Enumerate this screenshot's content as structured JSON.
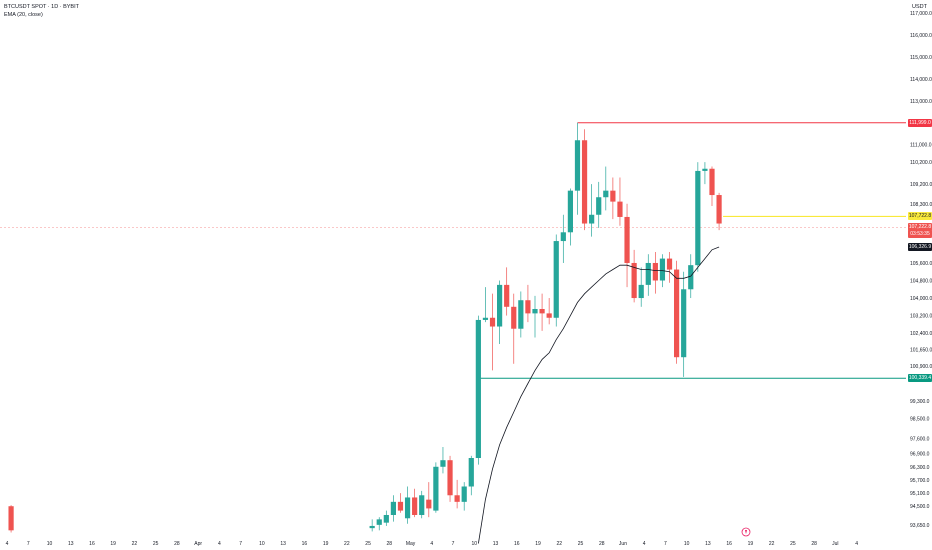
{
  "header": {
    "symbol_line": "BTCUSDT SPOT · 1D · BYBIT",
    "indicator_line": "EMA (20, close)",
    "currency": "USDT"
  },
  "colors": {
    "up": "#26a69a",
    "down": "#ef5350",
    "ema": "#131722",
    "resistance": "#f23645",
    "support": "#089981",
    "current_price_line": "#f9e93b",
    "crosshair_dash": "#f7a8a8"
  },
  "price_labels": {
    "resistance": "111,999.0",
    "current": "107,722.8",
    "last": "107,222.8",
    "countdown": "03:53:35",
    "ema_value": "106,326.9",
    "support": "100,339.4"
  },
  "logo": {
    "icon": "tradingview-logo-icon"
  },
  "chart_data": {
    "type": "candlestick",
    "title": "BTCUSDT SPOT · 1D · BYBIT",
    "xlabel": "",
    "ylabel": "USDT",
    "ylim": [
      93050,
      117600
    ],
    "y_ticks": [
      {
        "v": 93650,
        "label": "93,650.0"
      },
      {
        "v": 94500,
        "label": "94,500.0"
      },
      {
        "v": 95100,
        "label": "95,100.0"
      },
      {
        "v": 95700,
        "label": "95,700.0"
      },
      {
        "v": 96300,
        "label": "96,300.0"
      },
      {
        "v": 96900,
        "label": "96,900.0"
      },
      {
        "v": 97600,
        "label": "97,600.0"
      },
      {
        "v": 98500,
        "label": "98,500.0"
      },
      {
        "v": 99300,
        "label": "99,300.0"
      },
      {
        "v": 100900,
        "label": "100,900.0"
      },
      {
        "v": 101650,
        "label": "101,650.0"
      },
      {
        "v": 102400,
        "label": "102,400.0"
      },
      {
        "v": 103200,
        "label": "103,200.0"
      },
      {
        "v": 104000,
        "label": "104,000.0"
      },
      {
        "v": 104800,
        "label": "104,800.0"
      },
      {
        "v": 105600,
        "label": "105,600.0"
      },
      {
        "v": 108300,
        "label": "108,300.0"
      },
      {
        "v": 109200,
        "label": "109,200.0"
      },
      {
        "v": 110200,
        "label": "110,200.0"
      },
      {
        "v": 111000,
        "label": "111,000.0"
      },
      {
        "v": 113000,
        "label": "113,000.0"
      },
      {
        "v": 114000,
        "label": "114,000.0"
      },
      {
        "v": 115000,
        "label": "115,000.0"
      },
      {
        "v": 116000,
        "label": "116,000.0"
      },
      {
        "v": 117000,
        "label": "117,000.0"
      }
    ],
    "x_ticks": [
      "4",
      "7",
      "10",
      "13",
      "16",
      "19",
      "22",
      "25",
      "28",
      "Apr",
      "4",
      "7",
      "10",
      "13",
      "16",
      "19",
      "22",
      "25",
      "28",
      "May",
      "4",
      "7",
      "10",
      "13",
      "16",
      "19",
      "22",
      "25",
      "28",
      "Jun",
      "4",
      "7",
      "10",
      "13",
      "16",
      "19",
      "22",
      "25",
      "28",
      "Jul",
      "4"
    ],
    "first_day_index": -1,
    "candles": [
      {
        "d": 0,
        "o": 94500,
        "h": 94550,
        "l": 93300,
        "c": 93400
      },
      {
        "d": 51,
        "o": 93500,
        "h": 93900,
        "l": 93350,
        "c": 93600
      },
      {
        "d": 52,
        "o": 93650,
        "h": 94000,
        "l": 93400,
        "c": 93900
      },
      {
        "d": 53,
        "o": 93750,
        "h": 94300,
        "l": 93600,
        "c": 94100
      },
      {
        "d": 54,
        "o": 94100,
        "h": 95000,
        "l": 93800,
        "c": 94700
      },
      {
        "d": 55,
        "o": 94700,
        "h": 95100,
        "l": 94200,
        "c": 94300
      },
      {
        "d": 56,
        "o": 93950,
        "h": 95400,
        "l": 93700,
        "c": 94900
      },
      {
        "d": 57,
        "o": 94900,
        "h": 95300,
        "l": 94000,
        "c": 94100
      },
      {
        "d": 58,
        "o": 94100,
        "h": 95200,
        "l": 93950,
        "c": 95000
      },
      {
        "d": 59,
        "o": 94800,
        "h": 95600,
        "l": 94000,
        "c": 94400
      },
      {
        "d": 60,
        "o": 94300,
        "h": 96500,
        "l": 94200,
        "c": 96300
      },
      {
        "d": 61,
        "o": 96300,
        "h": 97200,
        "l": 96000,
        "c": 96600
      },
      {
        "d": 62,
        "o": 96600,
        "h": 96800,
        "l": 94700,
        "c": 95000
      },
      {
        "d": 63,
        "o": 95000,
        "h": 95700,
        "l": 94400,
        "c": 94700
      },
      {
        "d": 64,
        "o": 94700,
        "h": 95600,
        "l": 94300,
        "c": 95400
      },
      {
        "d": 65,
        "o": 95400,
        "h": 96800,
        "l": 95000,
        "c": 96700
      },
      {
        "d": 66,
        "o": 96700,
        "h": 103200,
        "l": 96400,
        "c": 103000
      },
      {
        "d": 67,
        "o": 103000,
        "h": 104500,
        "l": 102900,
        "c": 103100
      },
      {
        "d": 68,
        "o": 103100,
        "h": 104200,
        "l": 100700,
        "c": 102700
      },
      {
        "d": 69,
        "o": 102700,
        "h": 104800,
        "l": 101900,
        "c": 104600
      },
      {
        "d": 70,
        "o": 104600,
        "h": 105400,
        "l": 103200,
        "c": 103600
      },
      {
        "d": 71,
        "o": 103600,
        "h": 104200,
        "l": 101000,
        "c": 102600
      },
      {
        "d": 72,
        "o": 102600,
        "h": 104300,
        "l": 102200,
        "c": 103900
      },
      {
        "d": 73,
        "o": 103900,
        "h": 104600,
        "l": 102900,
        "c": 103300
      },
      {
        "d": 74,
        "o": 103300,
        "h": 104100,
        "l": 102200,
        "c": 103500
      },
      {
        "d": 75,
        "o": 103500,
        "h": 104200,
        "l": 102500,
        "c": 103300
      },
      {
        "d": 76,
        "o": 103300,
        "h": 104000,
        "l": 102800,
        "c": 103100
      },
      {
        "d": 77,
        "o": 103100,
        "h": 106900,
        "l": 102700,
        "c": 106600
      },
      {
        "d": 78,
        "o": 106600,
        "h": 107800,
        "l": 105600,
        "c": 107000
      },
      {
        "d": 79,
        "o": 107000,
        "h": 109000,
        "l": 106400,
        "c": 108900
      },
      {
        "d": 80,
        "o": 108900,
        "h": 111999,
        "l": 107800,
        "c": 111200
      },
      {
        "d": 81,
        "o": 111200,
        "h": 111700,
        "l": 107100,
        "c": 107400
      },
      {
        "d": 82,
        "o": 107400,
        "h": 109200,
        "l": 106800,
        "c": 107800
      },
      {
        "d": 83,
        "o": 107800,
        "h": 109300,
        "l": 107200,
        "c": 108600
      },
      {
        "d": 84,
        "o": 108600,
        "h": 110000,
        "l": 108000,
        "c": 108900
      },
      {
        "d": 85,
        "o": 108900,
        "h": 109500,
        "l": 107600,
        "c": 108400
      },
      {
        "d": 86,
        "o": 108400,
        "h": 109500,
        "l": 107300,
        "c": 107700
      },
      {
        "d": 87,
        "o": 107700,
        "h": 108300,
        "l": 104500,
        "c": 105600
      },
      {
        "d": 88,
        "o": 105600,
        "h": 106200,
        "l": 103800,
        "c": 104000
      },
      {
        "d": 89,
        "o": 104000,
        "h": 105400,
        "l": 103600,
        "c": 104600
      },
      {
        "d": 90,
        "o": 104600,
        "h": 106000,
        "l": 104100,
        "c": 105600
      },
      {
        "d": 91,
        "o": 105600,
        "h": 106100,
        "l": 104200,
        "c": 104800
      },
      {
        "d": 92,
        "o": 104800,
        "h": 106000,
        "l": 104500,
        "c": 105800
      },
      {
        "d": 93,
        "o": 105800,
        "h": 106100,
        "l": 104700,
        "c": 105300
      },
      {
        "d": 94,
        "o": 105300,
        "h": 105700,
        "l": 101000,
        "c": 101300
      },
      {
        "d": 95,
        "o": 101300,
        "h": 105200,
        "l": 100400,
        "c": 104400
      },
      {
        "d": 96,
        "o": 104400,
        "h": 106000,
        "l": 104000,
        "c": 105500
      },
      {
        "d": 97,
        "o": 105500,
        "h": 110200,
        "l": 105200,
        "c": 109800
      },
      {
        "d": 98,
        "o": 109800,
        "h": 110200,
        "l": 109200,
        "c": 109900
      },
      {
        "d": 99,
        "o": 109900,
        "h": 110000,
        "l": 108200,
        "c": 108700
      },
      {
        "d": 100,
        "o": 108700,
        "h": 108800,
        "l": 107100,
        "c": 107400
      }
    ],
    "ema": {
      "name": "EMA (20, close)",
      "points": [
        {
          "d": 66,
          "v": 92800
        },
        {
          "d": 67,
          "v": 94800
        },
        {
          "d": 68,
          "v": 96200
        },
        {
          "d": 69,
          "v": 97300
        },
        {
          "d": 70,
          "v": 98100
        },
        {
          "d": 71,
          "v": 98800
        },
        {
          "d": 72,
          "v": 99500
        },
        {
          "d": 73,
          "v": 100100
        },
        {
          "d": 74,
          "v": 100700
        },
        {
          "d": 75,
          "v": 101200
        },
        {
          "d": 76,
          "v": 101500
        },
        {
          "d": 77,
          "v": 102100
        },
        {
          "d": 78,
          "v": 102600
        },
        {
          "d": 79,
          "v": 103200
        },
        {
          "d": 80,
          "v": 103800
        },
        {
          "d": 81,
          "v": 104200
        },
        {
          "d": 82,
          "v": 104500
        },
        {
          "d": 83,
          "v": 104800
        },
        {
          "d": 84,
          "v": 105100
        },
        {
          "d": 85,
          "v": 105300
        },
        {
          "d": 86,
          "v": 105500
        },
        {
          "d": 87,
          "v": 105500
        },
        {
          "d": 88,
          "v": 105400
        },
        {
          "d": 89,
          "v": 105300
        },
        {
          "d": 90,
          "v": 105300
        },
        {
          "d": 91,
          "v": 105250
        },
        {
          "d": 92,
          "v": 105250
        },
        {
          "d": 93,
          "v": 105200
        },
        {
          "d": 94,
          "v": 104900
        },
        {
          "d": 95,
          "v": 104900
        },
        {
          "d": 96,
          "v": 105000
        },
        {
          "d": 97,
          "v": 105400
        },
        {
          "d": 98,
          "v": 105800
        },
        {
          "d": 99,
          "v": 106200
        },
        {
          "d": 100,
          "v": 106326.9
        }
      ]
    },
    "levels": {
      "resistance": {
        "value": 111999.0,
        "from_day": 80
      },
      "support": {
        "value": 100339.4,
        "from_day": 67
      },
      "current": {
        "value": 107722.8,
        "from_day": 100
      },
      "last_dashed": {
        "value": 107222.8
      }
    }
  }
}
